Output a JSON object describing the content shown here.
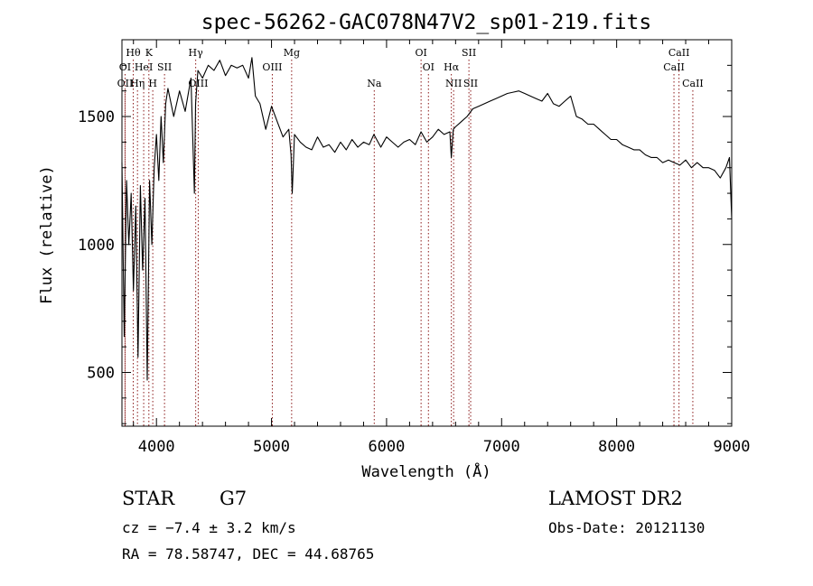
{
  "chart_data": {
    "type": "line",
    "title": "spec-56262-GAC078N47V2_sp01-219.fits",
    "xlabel": "Wavelength (Å)",
    "ylabel": "Flux (relative)",
    "xlim": [
      3700,
      9000
    ],
    "ylim": [
      290,
      1800
    ],
    "xticks": [
      4000,
      5000,
      6000,
      7000,
      8000,
      9000
    ],
    "yticks": [
      500,
      1000,
      1500
    ],
    "grid": false,
    "line_color": "#000000",
    "marker_line_color": "#8b1a1a",
    "series": [
      {
        "x": [
          3700,
          3720,
          3740,
          3760,
          3780,
          3800,
          3820,
          3840,
          3860,
          3880,
          3900,
          3920,
          3940,
          3960,
          3980,
          4000,
          4020,
          4040,
          4060,
          4080,
          4100,
          4150,
          4200,
          4250,
          4300,
          4330,
          4340,
          4360,
          4400,
          4450,
          4500,
          4550,
          4600,
          4650,
          4700,
          4750,
          4800,
          4830,
          4860,
          4900,
          4950,
          5000,
          5050,
          5100,
          5150,
          5170,
          5180,
          5200,
          5250,
          5300,
          5350,
          5400,
          5450,
          5500,
          5550,
          5600,
          5650,
          5700,
          5750,
          5800,
          5850,
          5890,
          5950,
          6000,
          6050,
          6100,
          6150,
          6200,
          6250,
          6300,
          6350,
          6400,
          6450,
          6500,
          6550,
          6563,
          6580,
          6600,
          6650,
          6700,
          6750,
          6800,
          6850,
          6900,
          6950,
          7000,
          7050,
          7100,
          7150,
          7200,
          7250,
          7300,
          7350,
          7400,
          7450,
          7500,
          7550,
          7600,
          7650,
          7700,
          7750,
          7800,
          7850,
          7900,
          7950,
          8000,
          8050,
          8100,
          8150,
          8200,
          8250,
          8300,
          8350,
          8400,
          8450,
          8500,
          8550,
          8600,
          8650,
          8700,
          8750,
          8800,
          8850,
          8900,
          8950,
          8980,
          9000
        ],
        "y": [
          1320,
          640,
          1250,
          1000,
          1200,
          820,
          1150,
          560,
          1230,
          900,
          1180,
          470,
          1250,
          1000,
          1300,
          1430,
          1250,
          1500,
          1320,
          1550,
          1610,
          1500,
          1600,
          1520,
          1650,
          1200,
          1550,
          1680,
          1650,
          1700,
          1680,
          1720,
          1660,
          1700,
          1690,
          1700,
          1650,
          1730,
          1580,
          1550,
          1450,
          1540,
          1480,
          1420,
          1450,
          1350,
          1200,
          1430,
          1400,
          1380,
          1370,
          1420,
          1380,
          1390,
          1360,
          1400,
          1370,
          1410,
          1380,
          1400,
          1390,
          1430,
          1380,
          1420,
          1400,
          1380,
          1400,
          1410,
          1390,
          1440,
          1400,
          1420,
          1450,
          1430,
          1440,
          1340,
          1450,
          1460,
          1480,
          1500,
          1530,
          1540,
          1550,
          1560,
          1570,
          1580,
          1590,
          1595,
          1600,
          1590,
          1580,
          1570,
          1560,
          1590,
          1550,
          1540,
          1560,
          1580,
          1500,
          1490,
          1470,
          1470,
          1450,
          1430,
          1410,
          1410,
          1390,
          1380,
          1370,
          1370,
          1350,
          1340,
          1340,
          1320,
          1330,
          1320,
          1310,
          1330,
          1300,
          1320,
          1300,
          1300,
          1290,
          1260,
          1300,
          1340,
          1100
        ]
      }
    ],
    "lines": [
      {
        "label": "Hθ",
        "x": 3798,
        "row": 1
      },
      {
        "label": "K",
        "x": 3934,
        "row": 1
      },
      {
        "label": "Hγ",
        "x": 4341,
        "row": 1
      },
      {
        "label": "Mg",
        "x": 5175,
        "row": 1
      },
      {
        "label": "OI",
        "x": 6300,
        "row": 1
      },
      {
        "label": "SII",
        "x": 6716,
        "row": 1
      },
      {
        "label": "CaII",
        "x": 8542,
        "row": 1
      },
      {
        "label": "OI",
        "x": 3727,
        "row": 2
      },
      {
        "label": "HeI",
        "x": 3889,
        "row": 2
      },
      {
        "label": "SII",
        "x": 4070,
        "row": 2
      },
      {
        "label": "OIII",
        "x": 5007,
        "row": 2
      },
      {
        "label": "OI",
        "x": 6364,
        "row": 2
      },
      {
        "label": "Hα",
        "x": 6563,
        "row": 2
      },
      {
        "label": "CaII",
        "x": 8498,
        "row": 2
      },
      {
        "label": "OII",
        "x": 3727,
        "row": 3
      },
      {
        "label": "Hη",
        "x": 3835,
        "row": 3
      },
      {
        "label": "H",
        "x": 3968,
        "row": 3
      },
      {
        "label": "OIII",
        "x": 4363,
        "row": 3
      },
      {
        "label": "Na",
        "x": 5893,
        "row": 3
      },
      {
        "label": "NII",
        "x": 6583,
        "row": 3
      },
      {
        "label": "SII",
        "x": 6731,
        "row": 3
      },
      {
        "label": "CaII",
        "x": 8662,
        "row": 3
      }
    ]
  },
  "info": {
    "class": "STAR",
    "subclass": "G7",
    "cz": "cz = −7.4 ± 3.2 km/s",
    "radec": "RA =  78.58747, DEC =  44.68765",
    "survey": "LAMOST DR2",
    "obsdate": "Obs-Date: 20121130"
  }
}
